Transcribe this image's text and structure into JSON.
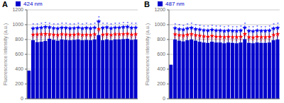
{
  "chart_data": [
    {
      "type": "bar",
      "title": "A",
      "ylabel": "Fluorescence intensity (a.u.)",
      "ylim": [
        0,
        1200
      ],
      "yticks": [
        0,
        200,
        400,
        600,
        800,
        1000,
        1200
      ],
      "grid": true,
      "legend": "upper left",
      "tick_labels": "y",
      "series": [
        {
          "name": "424 nm",
          "type": "bar",
          "color": "#0000CC",
          "values": [
            380,
            790,
            765,
            770,
            780,
            810,
            795,
            785,
            800,
            795,
            790,
            795,
            800,
            790,
            795,
            790,
            800,
            860,
            790,
            800,
            790,
            800,
            800,
            805,
            810,
            795,
            800
          ],
          "error_upper": [
            null,
            950,
            955,
            960,
            970,
            965,
            955,
            950,
            960,
            958,
            952,
            955,
            962,
            952,
            958,
            952,
            962,
            1045,
            958,
            965,
            952,
            962,
            962,
            968,
            972,
            958,
            962
          ]
        },
        {
          "type": "scatter",
          "marker": "star",
          "color": "blue",
          "annotation": "*",
          "values": [
            null,
            950,
            955,
            960,
            970,
            965,
            955,
            950,
            960,
            958,
            952,
            955,
            962,
            952,
            958,
            952,
            962,
            1045,
            958,
            965,
            952,
            962,
            962,
            968,
            972,
            958,
            962
          ]
        },
        {
          "type": "scatter",
          "marker": "star",
          "color": "red",
          "annotation": "*",
          "values": [
            null,
            865,
            868,
            870,
            875,
            870,
            865,
            862,
            870,
            868,
            863,
            866,
            870,
            862,
            866,
            862,
            870,
            940,
            866,
            870,
            862,
            870,
            870,
            874,
            878,
            866,
            870
          ]
        }
      ]
    },
    {
      "type": "bar",
      "title": "B",
      "ylabel": "Fluorescence intensity (a.u.)",
      "ylim": [
        0,
        1200
      ],
      "yticks": [
        0,
        200,
        400,
        600,
        800,
        1000,
        1200
      ],
      "grid": true,
      "legend": "upper left",
      "tick_labels": "y",
      "series": [
        {
          "name": "487 nm",
          "type": "bar",
          "color": "#0000CC",
          "values": [
            460,
            800,
            785,
            775,
            790,
            800,
            785,
            770,
            760,
            755,
            770,
            760,
            760,
            750,
            760,
            755,
            750,
            760,
            805,
            755,
            750,
            760,
            755,
            755,
            760,
            790,
            800
          ],
          "error_upper": [
            null,
            955,
            940,
            935,
            950,
            958,
            942,
            936,
            926,
            922,
            932,
            922,
            922,
            916,
            922,
            917,
            916,
            922,
            962,
            917,
            912,
            922,
            917,
            917,
            922,
            948,
            958
          ]
        },
        {
          "type": "scatter",
          "marker": "star",
          "color": "blue",
          "annotation": "*",
          "values": [
            null,
            955,
            940,
            935,
            950,
            958,
            942,
            936,
            926,
            922,
            932,
            922,
            922,
            916,
            922,
            917,
            916,
            922,
            962,
            917,
            912,
            922,
            917,
            917,
            922,
            948,
            958
          ]
        },
        {
          "type": "scatter",
          "marker": "star",
          "color": "red",
          "annotation": "*",
          "values": [
            null,
            870,
            858,
            854,
            865,
            872,
            858,
            852,
            842,
            838,
            848,
            838,
            838,
            832,
            838,
            833,
            832,
            838,
            875,
            833,
            828,
            838,
            833,
            833,
            838,
            862,
            872
          ]
        }
      ]
    }
  ]
}
